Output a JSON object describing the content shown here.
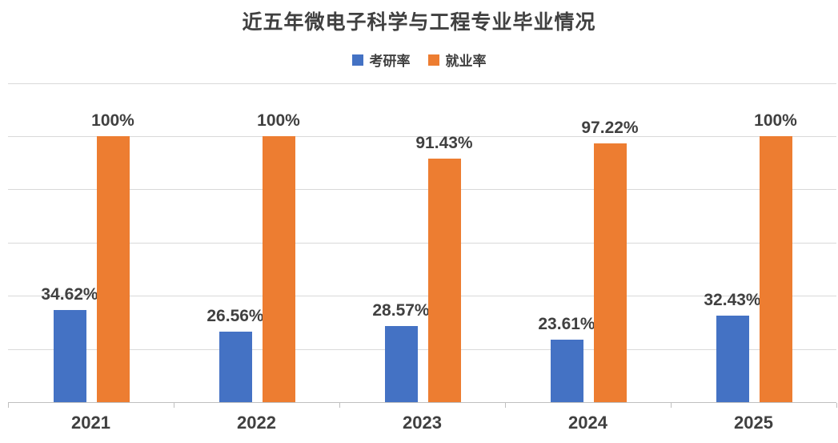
{
  "chart_data": {
    "type": "bar",
    "title": "近五年微电子科学与工程专业毕业情况",
    "categories": [
      "2021",
      "2022",
      "2023",
      "2024",
      "2025"
    ],
    "series": [
      {
        "name": "考研率",
        "color": "#4472C4",
        "values": [
          34.62,
          26.56,
          28.57,
          23.61,
          32.43
        ],
        "labels": [
          "34.62%",
          "26.56%",
          "28.57%",
          "23.61%",
          "32.43%"
        ]
      },
      {
        "name": "就业率",
        "color": "#ED7D31",
        "values": [
          100,
          100,
          91.43,
          97.22,
          100
        ],
        "labels": [
          "100%",
          "100%",
          "91.43%",
          "97.22%",
          "100%"
        ]
      }
    ],
    "xlabel": "",
    "ylabel": "",
    "ylim": [
      0,
      120
    ],
    "grid_step": 20,
    "grid": true,
    "y_tick_labels_visible": false,
    "legend_position": "top",
    "colors": {
      "grid": "#d9d9d9",
      "axis": "#bfbfbf",
      "text": "#404040",
      "background": "#ffffff"
    }
  }
}
